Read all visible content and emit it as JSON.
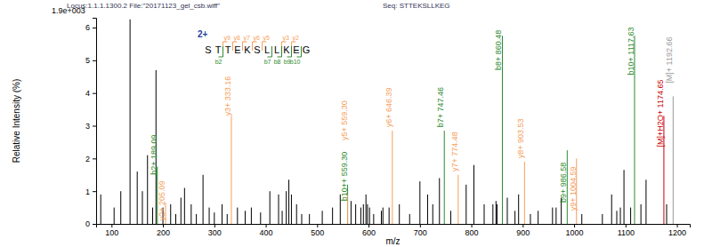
{
  "chart_data": {
    "type": "bar",
    "title": "Locus:1.1.1.1300.2  File:\"20171123_gel_csb.wiff\"",
    "subtitle": "Seq: STTEKSLLKEG",
    "y_multiplier": "1.9e+003",
    "xlabel": "m/z",
    "ylabel": "Relative Intensity (%)",
    "xlim": [
      70,
      1225
    ],
    "ylim": [
      0,
      6.3
    ],
    "xticks": [
      100,
      200,
      300,
      400,
      500,
      600,
      700,
      800,
      900,
      1000,
      1100,
      1200
    ],
    "yticks": [
      0,
      1,
      2,
      3,
      4,
      5,
      6
    ],
    "grid": false,
    "x": [
      79,
      105,
      118,
      136,
      150,
      160,
      170,
      180,
      186.5,
      189.09,
      200,
      205.09,
      215,
      225,
      235,
      242,
      255,
      265,
      278,
      290,
      300,
      315,
      325,
      333.16,
      345,
      360,
      372,
      390,
      408,
      425,
      432,
      440,
      445,
      450,
      460,
      470,
      485,
      510,
      530,
      545,
      559.3,
      559.3,
      566,
      575,
      585,
      590,
      595,
      598,
      602,
      610,
      625,
      628,
      640,
      646.39,
      660,
      680,
      700,
      715,
      725,
      738,
      747.46,
      760,
      774.48,
      790,
      805,
      825,
      842,
      848,
      850,
      860.48,
      870,
      885,
      892,
      903.53,
      915,
      930,
      958,
      965,
      975,
      986.58,
      1004.59,
      1015,
      1055,
      1073,
      1083,
      1090,
      1097,
      1110,
      1117.63,
      1130,
      1140,
      1174.65,
      1180,
      1192.66
    ],
    "values": [
      0.9,
      0.5,
      1.0,
      6.25,
      1.6,
      1.0,
      2.1,
      0.5,
      4.7,
      1.75,
      0.5,
      0.65,
      0.6,
      0.3,
      0.8,
      1.1,
      0.6,
      0.3,
      1.5,
      0.5,
      0.35,
      0.6,
      0.3,
      3.3,
      0.5,
      0.4,
      0.5,
      0.35,
      1.0,
      0.9,
      0.4,
      1.0,
      1.35,
      0.9,
      0.6,
      0.3,
      0.3,
      0.4,
      0.5,
      0.9,
      1.2,
      0.9,
      0.7,
      0.6,
      0.5,
      0.6,
      0.9,
      0.6,
      0.5,
      0.3,
      0.4,
      0.5,
      0.5,
      2.85,
      0.6,
      0.3,
      1.3,
      0.9,
      0.6,
      1.4,
      2.85,
      0.4,
      1.5,
      1.2,
      1.8,
      0.6,
      0.6,
      0.7,
      0.6,
      5.75,
      0.8,
      0.4,
      0.9,
      1.9,
      0.3,
      0.4,
      0.5,
      0.5,
      0.8,
      2.25,
      2.0,
      0.3,
      0.3,
      0.9,
      0.4,
      0.5,
      1.65,
      0.5,
      5.75,
      0.6,
      1.35,
      3.3,
      0.6,
      3.9
    ],
    "colors": [
      "#000000",
      "#000000",
      "#000000",
      "#000000",
      "#000000",
      "#000000",
      "#000000",
      "#000000",
      "#000000",
      "#2e8b2e",
      "#000000",
      "#f5a05a",
      "#000000",
      "#000000",
      "#000000",
      "#000000",
      "#000000",
      "#000000",
      "#000000",
      "#000000",
      "#000000",
      "#000000",
      "#000000",
      "#f5a05a",
      "#000000",
      "#000000",
      "#000000",
      "#000000",
      "#000000",
      "#000000",
      "#000000",
      "#000000",
      "#000000",
      "#000000",
      "#000000",
      "#000000",
      "#000000",
      "#000000",
      "#000000",
      "#000000",
      "#2e8b2e",
      "#f5a05a",
      "#000000",
      "#000000",
      "#000000",
      "#000000",
      "#000000",
      "#000000",
      "#000000",
      "#000000",
      "#000000",
      "#000000",
      "#000000",
      "#f5a05a",
      "#000000",
      "#000000",
      "#000000",
      "#000000",
      "#000000",
      "#000000",
      "#2e8b2e",
      "#000000",
      "#f5a05a",
      "#000000",
      "#000000",
      "#000000",
      "#000000",
      "#000000",
      "#000000",
      "#2e8b2e",
      "#000000",
      "#000000",
      "#000000",
      "#f5a05a",
      "#000000",
      "#000000",
      "#000000",
      "#000000",
      "#000000",
      "#2e8b2e",
      "#f5a05a",
      "#000000",
      "#000000",
      "#000000",
      "#000000",
      "#000000",
      "#000000",
      "#000000",
      "#2e8b2e",
      "#000000",
      "#000000",
      "#cc0000",
      "#000000",
      "#999999"
    ],
    "annotations": [
      {
        "x": 189.09,
        "y": 1.5,
        "text": "b2+ 189.09",
        "color": "#2e8b2e"
      },
      {
        "x": 205.09,
        "y": 0.1,
        "text": "y2+ 205.09",
        "color": "#f5a05a"
      },
      {
        "x": 333.16,
        "y": 3.3,
        "text": "y3+ 333.16",
        "color": "#f5a05a"
      },
      {
        "x": 559.3,
        "y": 0.7,
        "text": "b10++ 559.30",
        "color": "#2e8b2e"
      },
      {
        "x": 559.3,
        "y": 2.55,
        "text": "y5+ 559.30",
        "color": "#f5a05a"
      },
      {
        "x": 646.39,
        "y": 2.95,
        "text": "y6+ 646.39",
        "color": "#f5a05a"
      },
      {
        "x": 747.46,
        "y": 2.95,
        "text": "b7+ 747.46",
        "color": "#2e8b2e"
      },
      {
        "x": 774.48,
        "y": 1.6,
        "text": "y7+ 774.48",
        "color": "#f5a05a"
      },
      {
        "x": 860.48,
        "y": 4.7,
        "text": "b8+ 860.48",
        "color": "#2e8b2e"
      },
      {
        "x": 903.53,
        "y": 2.0,
        "text": "y8+ 903.53",
        "color": "#f5a05a"
      },
      {
        "x": 986.58,
        "y": 0.65,
        "text": "b9+ 986.58",
        "color": "#2e8b2e"
      },
      {
        "x": 1004.59,
        "y": 0.4,
        "text": "y9+ 1004.59",
        "color": "#f5a05a"
      },
      {
        "x": 1117.63,
        "y": 4.55,
        "text": "b10+ 1117.63",
        "color": "#2e8b2e"
      },
      {
        "x": 1174.65,
        "y": 2.35,
        "text": "[M]+H2O+ 1174.65",
        "color": "#cc0000"
      },
      {
        "x": 1192.66,
        "y": 4.3,
        "text": "[M]+ 1192.66",
        "color": "#999999"
      }
    ],
    "sequence": {
      "charge": "2+",
      "residues": [
        "S",
        "T",
        "T",
        "E",
        "K",
        "S",
        "L",
        "L",
        "K",
        "E",
        "G"
      ],
      "y_ions": [
        {
          "n": 9,
          "label": "y9"
        },
        {
          "n": 8,
          "label": "y8"
        },
        {
          "n": 7,
          "label": "y7"
        },
        {
          "n": 6,
          "label": "y6"
        },
        {
          "n": 5,
          "label": "y5"
        },
        {
          "n": 3,
          "label": "y3"
        },
        {
          "n": 2,
          "label": "y2"
        }
      ],
      "b_ions": [
        {
          "n": 2,
          "label": "b2"
        },
        {
          "n": 7,
          "label": "b7"
        },
        {
          "n": 8,
          "label": "b8"
        },
        {
          "n": 9,
          "label": "b9"
        },
        {
          "n": 10,
          "label": "b10"
        }
      ]
    }
  }
}
